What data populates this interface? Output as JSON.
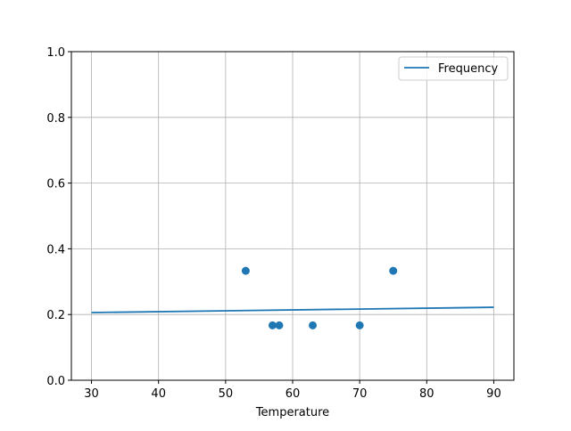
{
  "chart_data": {
    "type": "scatter",
    "title": "",
    "xlabel": "Temperature",
    "ylabel": "",
    "xlim": [
      27,
      93
    ],
    "ylim": [
      0,
      1
    ],
    "xticks": [
      30,
      40,
      50,
      60,
      70,
      80,
      90
    ],
    "yticks": [
      "0.0",
      "0.2",
      "0.4",
      "0.6",
      "0.8",
      "1.0"
    ],
    "grid": true,
    "legend_position": "top-right",
    "color": "#1f77b4",
    "scatter_points": [
      {
        "x": 53,
        "y": 0.333
      },
      {
        "x": 57,
        "y": 0.167
      },
      {
        "x": 58,
        "y": 0.167
      },
      {
        "x": 63,
        "y": 0.167
      },
      {
        "x": 70,
        "y": 0.167
      },
      {
        "x": 75,
        "y": 0.333
      }
    ],
    "line_series": {
      "name": "Frequency",
      "x": [
        30,
        90
      ],
      "y": [
        0.206,
        0.222
      ]
    }
  }
}
